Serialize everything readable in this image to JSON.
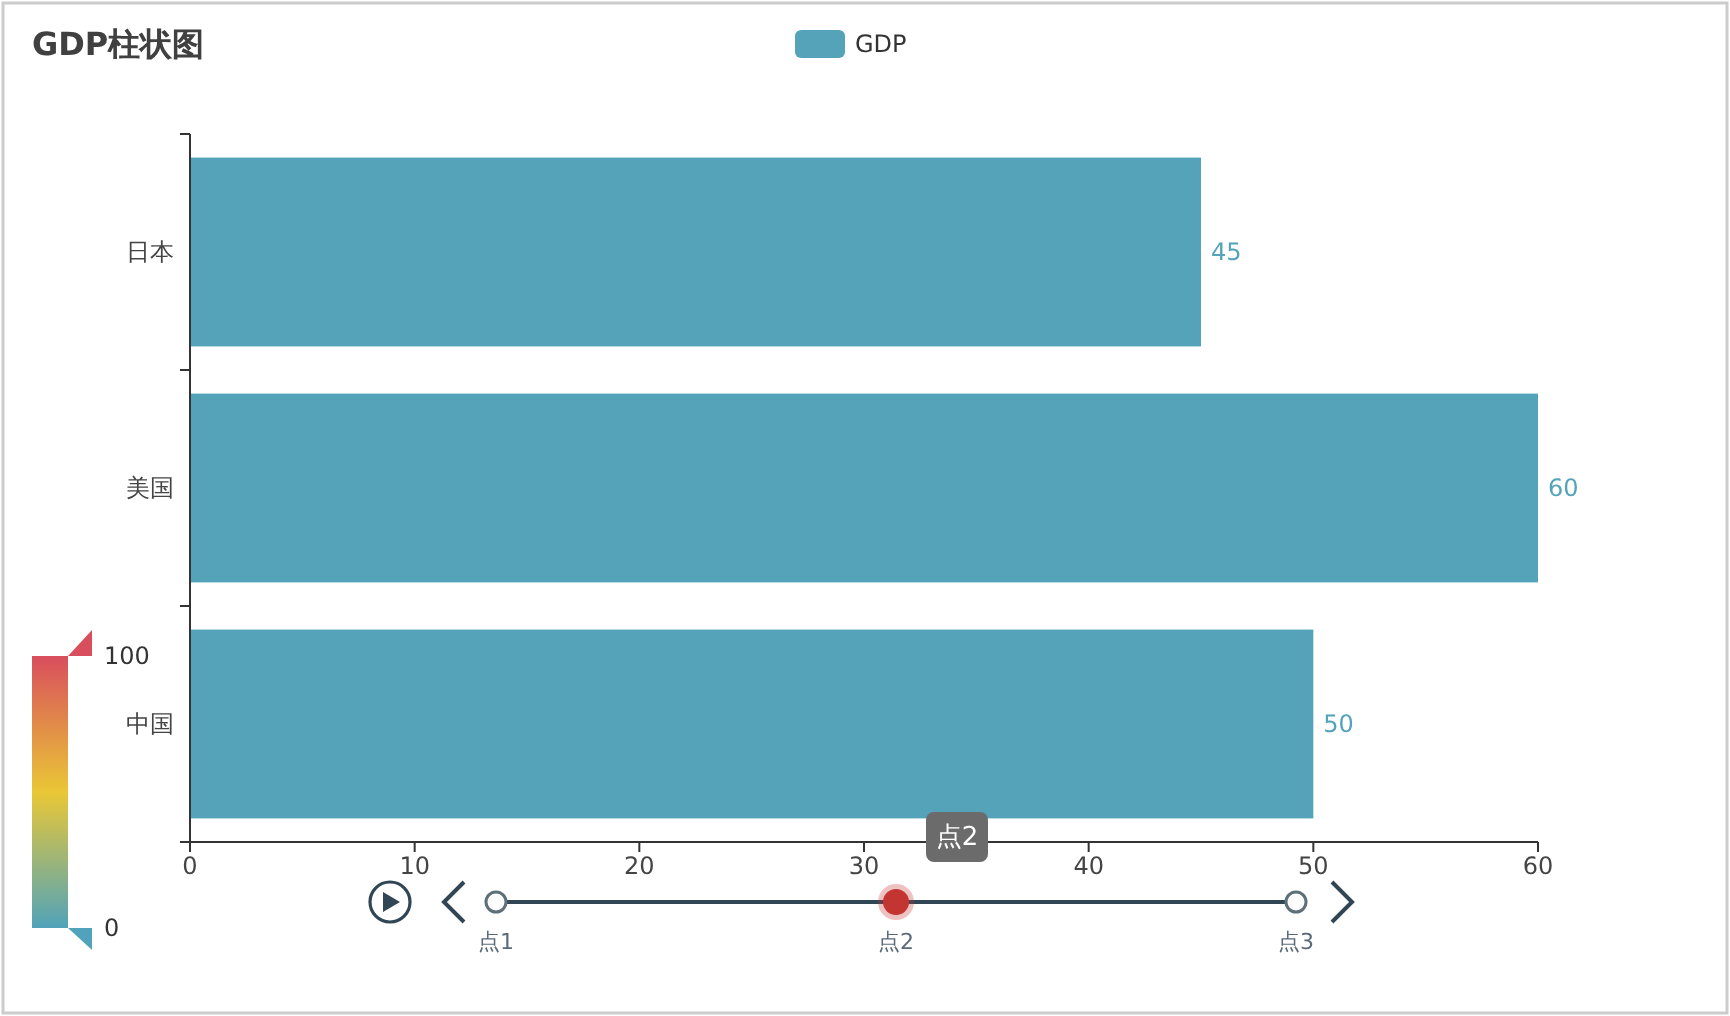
{
  "chart_data": {
    "type": "bar",
    "title": "GDP柱状图",
    "orientation": "horizontal",
    "categories": [
      "日本",
      "美国",
      "中国"
    ],
    "series": [
      {
        "name": "GDP",
        "color": "#54a3b9",
        "values": [
          45,
          60,
          50
        ]
      }
    ],
    "xlim": [
      0,
      60
    ],
    "xticks": [
      0,
      10,
      20,
      30,
      40,
      50,
      60
    ],
    "data_labels": true,
    "legend": "top",
    "clim": [
      0,
      100
    ],
    "cticks": [
      0,
      100
    ],
    "annotations": [
      "点1",
      "点2",
      "点3",
      "点2"
    ]
  }
}
